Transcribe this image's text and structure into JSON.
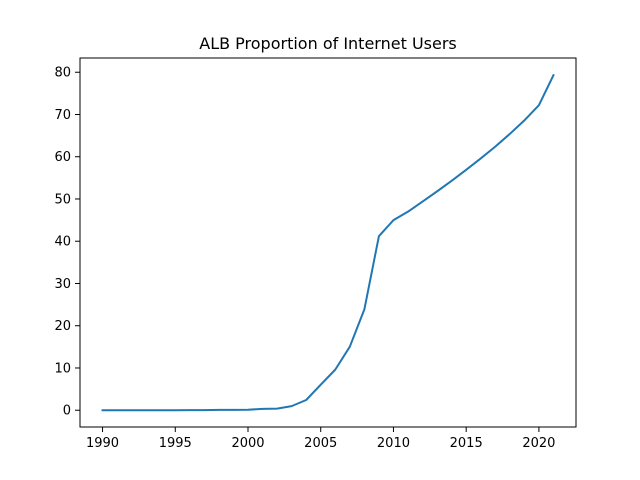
{
  "chart_data": {
    "type": "line",
    "title": "ALB Proportion of Internet Users",
    "xlabel": "",
    "ylabel": "",
    "xlim": [
      1988.45,
      2022.55
    ],
    "ylim": [
      -3.97,
      83.37
    ],
    "xticks": [
      1990,
      1995,
      2000,
      2005,
      2010,
      2015,
      2020
    ],
    "yticks": [
      0,
      10,
      20,
      30,
      40,
      50,
      60,
      70,
      80
    ],
    "grid": false,
    "legend": "none",
    "series": [
      {
        "color": "#1f77b4",
        "x": [
          1990,
          1991,
          1992,
          1993,
          1994,
          1995,
          1996,
          1997,
          1998,
          1999,
          2000,
          2001,
          2002,
          2003,
          2004,
          2005,
          2006,
          2007,
          2008,
          2009,
          2010,
          2011,
          2012,
          2013,
          2014,
          2015,
          2016,
          2017,
          2018,
          2019,
          2020,
          2021
        ],
        "y": [
          0,
          0,
          0,
          0,
          0,
          0.01,
          0.02,
          0.03,
          0.07,
          0.08,
          0.11,
          0.33,
          0.39,
          0.97,
          2.42,
          6.04,
          9.61,
          15.04,
          23.86,
          41.2,
          45.0,
          47.0,
          49.4,
          51.8,
          54.3,
          56.9,
          59.6,
          62.4,
          65.4,
          68.6,
          72.2,
          79.3
        ]
      }
    ]
  }
}
